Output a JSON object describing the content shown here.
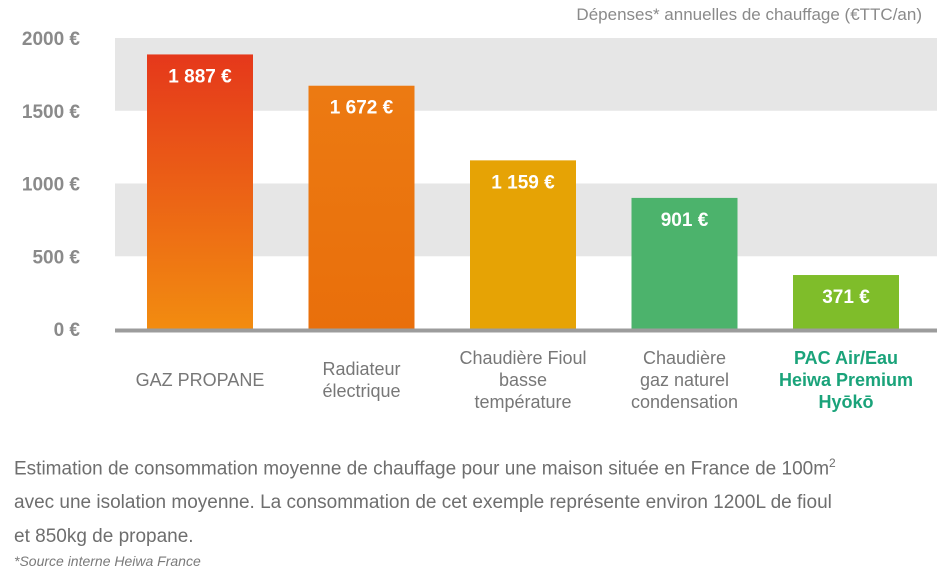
{
  "chart_data": {
    "type": "bar",
    "title": "Dépenses* annuelles de chauffage (€TTC/an)",
    "ylim": [
      0,
      2000
    ],
    "yticks": [
      0,
      500,
      1000,
      1500,
      2000
    ],
    "ytick_labels": [
      "0 €",
      "500 €",
      "1000 €",
      "1500 €",
      "2000 €"
    ],
    "grid": "alternating horizontal bands",
    "categories": [
      [
        "GAZ PROPANE"
      ],
      [
        "Radiateur",
        "électrique"
      ],
      [
        "Chaudière Fioul",
        "basse",
        "température"
      ],
      [
        "Chaudière",
        "gaz naturel",
        "condensation"
      ],
      [
        "PAC Air/Eau",
        "Heiwa Premium",
        "Hyōkō"
      ]
    ],
    "values": [
      1887,
      1672,
      1159,
      901,
      371
    ],
    "value_labels": [
      "1 887 €",
      "1 672 €",
      "1 159 €",
      "901 €",
      "371 €"
    ],
    "colors": [
      [
        "#e5381b",
        "#f28c10"
      ],
      [
        "#ec7a12",
        "#e96f0b"
      ],
      [
        "#e6a305",
        "#e6a305"
      ],
      [
        "#4cb36c",
        "#4cb36c"
      ],
      [
        "#7fbd2a",
        "#7fbd2a"
      ]
    ],
    "highlight_category_index": 4,
    "highlight_color": "#1aa37a"
  },
  "caption": {
    "line1": "Estimation de consommation moyenne de chauffage pour une maison située en France de 100m",
    "sup": "2",
    "line2": "avec une isolation moyenne. La consommation de cet exemple représente environ 1200L de fioul",
    "line3": "et 850kg de propane."
  },
  "source": "*Source interne Heiwa France"
}
